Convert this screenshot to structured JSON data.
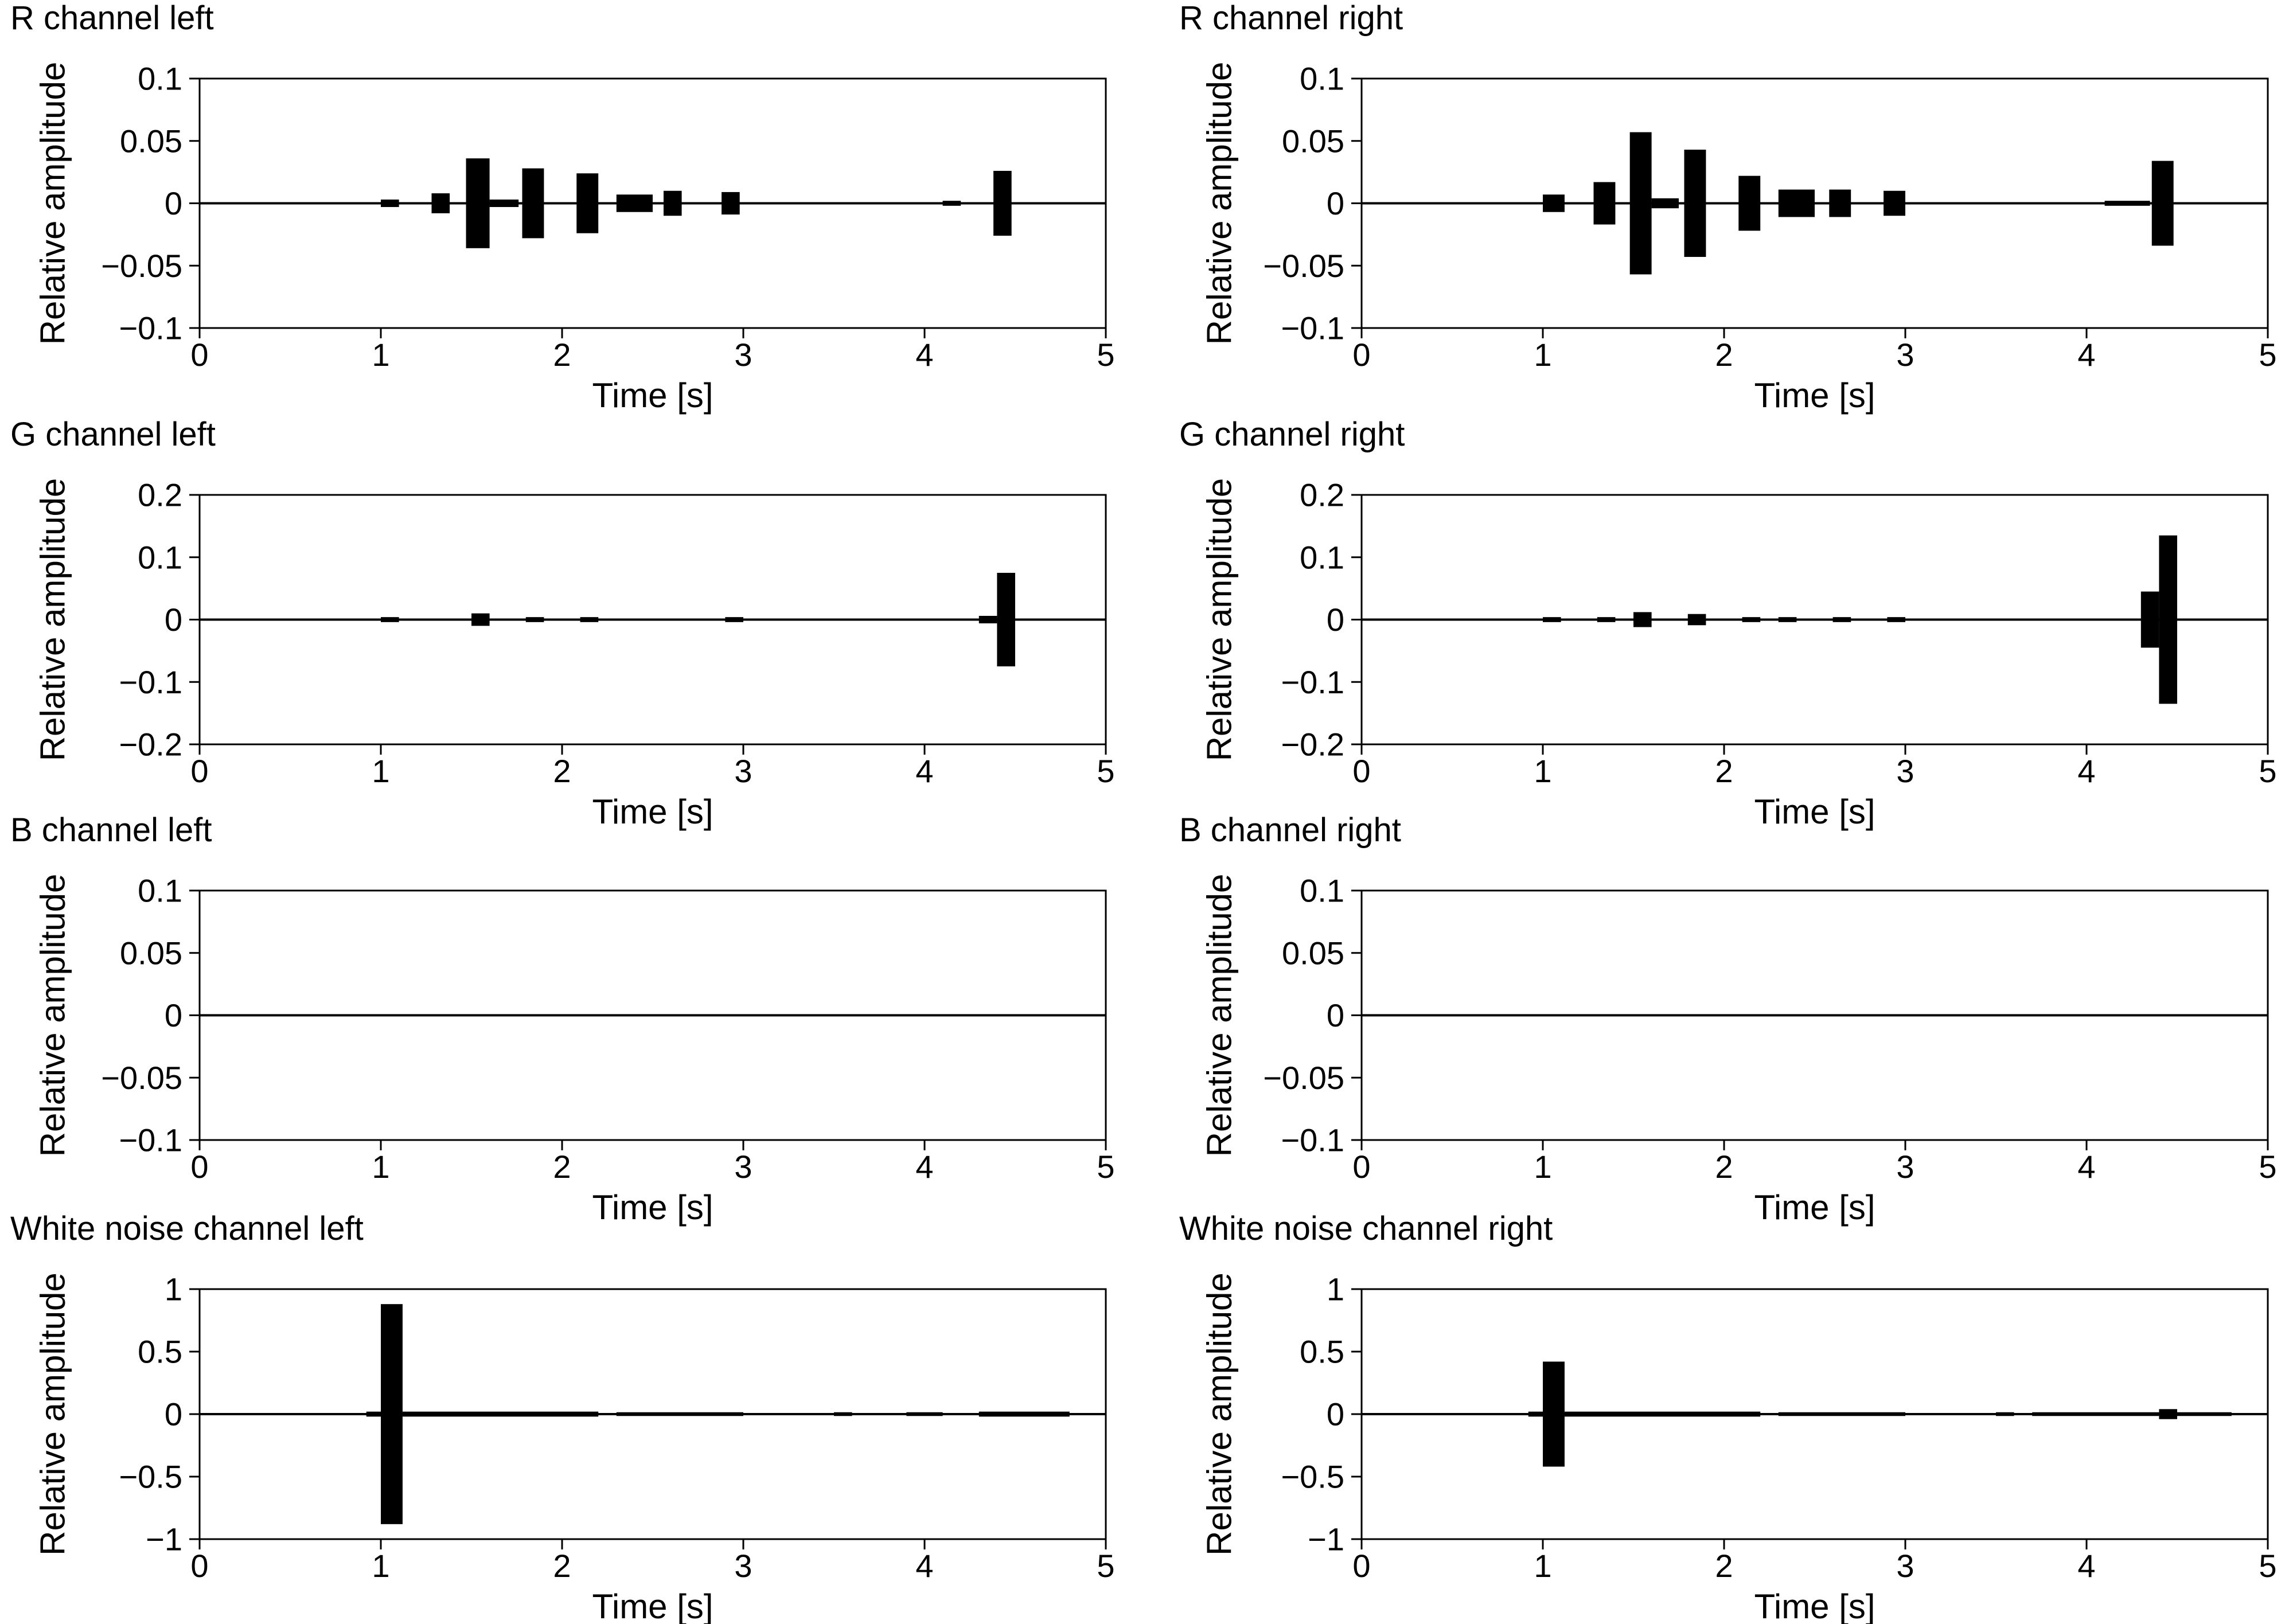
{
  "figure": {
    "x_axis_label": "Time [s]",
    "y_axis_label": "Relative amplitude"
  },
  "chart_data": [
    {
      "id": "r-left",
      "type": "line",
      "title": "R channel left",
      "xlabel": "Time [s]",
      "ylabel": "Relative amplitude",
      "xlim": [
        0,
        5
      ],
      "ylim": [
        -0.1,
        0.1
      ],
      "xticks": [
        0,
        1,
        2,
        3,
        4,
        5
      ],
      "yticks": [
        0.1,
        0.05,
        0,
        -0.05,
        -0.1
      ],
      "ytick_labels": [
        "0.1",
        "0.05",
        "0",
        "−0.05",
        "−0.1"
      ],
      "bursts": [
        {
          "start": 1.0,
          "end": 1.1,
          "amplitude": 0.003
        },
        {
          "start": 1.28,
          "end": 1.38,
          "amplitude": 0.008
        },
        {
          "start": 1.47,
          "end": 1.6,
          "amplitude": 0.036
        },
        {
          "start": 1.6,
          "end": 1.76,
          "amplitude": 0.003
        },
        {
          "start": 1.78,
          "end": 1.9,
          "amplitude": 0.028
        },
        {
          "start": 2.08,
          "end": 2.2,
          "amplitude": 0.024
        },
        {
          "start": 2.3,
          "end": 2.5,
          "amplitude": 0.007
        },
        {
          "start": 2.56,
          "end": 2.66,
          "amplitude": 0.01
        },
        {
          "start": 2.88,
          "end": 2.98,
          "amplitude": 0.009
        },
        {
          "start": 4.1,
          "end": 4.2,
          "amplitude": 0.002
        },
        {
          "start": 4.38,
          "end": 4.48,
          "amplitude": 0.026
        }
      ]
    },
    {
      "id": "r-right",
      "type": "line",
      "title": "R channel right",
      "xlabel": "Time [s]",
      "ylabel": "Relative amplitude",
      "xlim": [
        0,
        5
      ],
      "ylim": [
        -0.1,
        0.1
      ],
      "xticks": [
        0,
        1,
        2,
        3,
        4,
        5
      ],
      "yticks": [
        0.1,
        0.05,
        0,
        -0.05,
        -0.1
      ],
      "ytick_labels": [
        "0.1",
        "0.05",
        "0",
        "−0.05",
        "−0.1"
      ],
      "bursts": [
        {
          "start": 1.0,
          "end": 1.12,
          "amplitude": 0.007
        },
        {
          "start": 1.28,
          "end": 1.4,
          "amplitude": 0.017
        },
        {
          "start": 1.48,
          "end": 1.6,
          "amplitude": 0.057
        },
        {
          "start": 1.6,
          "end": 1.75,
          "amplitude": 0.004
        },
        {
          "start": 1.78,
          "end": 1.9,
          "amplitude": 0.043
        },
        {
          "start": 2.08,
          "end": 2.2,
          "amplitude": 0.022
        },
        {
          "start": 2.3,
          "end": 2.5,
          "amplitude": 0.011
        },
        {
          "start": 2.58,
          "end": 2.7,
          "amplitude": 0.011
        },
        {
          "start": 2.88,
          "end": 3.0,
          "amplitude": 0.01
        },
        {
          "start": 4.1,
          "end": 4.35,
          "amplitude": 0.002
        },
        {
          "start": 4.36,
          "end": 4.48,
          "amplitude": 0.034
        }
      ]
    },
    {
      "id": "g-left",
      "type": "line",
      "title": "G channel left",
      "xlabel": "Time [s]",
      "ylabel": "Relative amplitude",
      "xlim": [
        0,
        5
      ],
      "ylim": [
        -0.2,
        0.2
      ],
      "xticks": [
        0,
        1,
        2,
        3,
        4,
        5
      ],
      "yticks": [
        0.2,
        0.1,
        0,
        -0.1,
        -0.2
      ],
      "ytick_labels": [
        "0.2",
        "0.1",
        "0",
        "−0.1",
        "−0.2"
      ],
      "bursts": [
        {
          "start": 1.0,
          "end": 1.1,
          "amplitude": 0.004
        },
        {
          "start": 1.5,
          "end": 1.6,
          "amplitude": 0.01
        },
        {
          "start": 1.8,
          "end": 1.9,
          "amplitude": 0.004
        },
        {
          "start": 2.1,
          "end": 2.2,
          "amplitude": 0.004
        },
        {
          "start": 2.9,
          "end": 3.0,
          "amplitude": 0.004
        },
        {
          "start": 4.3,
          "end": 4.4,
          "amplitude": 0.006
        },
        {
          "start": 4.4,
          "end": 4.5,
          "amplitude": 0.075
        }
      ]
    },
    {
      "id": "g-right",
      "type": "line",
      "title": "G channel right",
      "xlabel": "Time [s]",
      "ylabel": "Relative amplitude",
      "xlim": [
        0,
        5
      ],
      "ylim": [
        -0.2,
        0.2
      ],
      "xticks": [
        0,
        1,
        2,
        3,
        4,
        5
      ],
      "yticks": [
        0.2,
        0.1,
        0,
        -0.1,
        -0.2
      ],
      "ytick_labels": [
        "0.2",
        "0.1",
        "0",
        "−0.1",
        "−0.2"
      ],
      "bursts": [
        {
          "start": 1.0,
          "end": 1.1,
          "amplitude": 0.004
        },
        {
          "start": 1.3,
          "end": 1.4,
          "amplitude": 0.004
        },
        {
          "start": 1.5,
          "end": 1.6,
          "amplitude": 0.012
        },
        {
          "start": 1.8,
          "end": 1.9,
          "amplitude": 0.009
        },
        {
          "start": 2.1,
          "end": 2.2,
          "amplitude": 0.004
        },
        {
          "start": 2.3,
          "end": 2.4,
          "amplitude": 0.004
        },
        {
          "start": 2.6,
          "end": 2.7,
          "amplitude": 0.004
        },
        {
          "start": 2.9,
          "end": 3.0,
          "amplitude": 0.004
        },
        {
          "start": 4.3,
          "end": 4.4,
          "amplitude": 0.045
        },
        {
          "start": 4.4,
          "end": 4.5,
          "amplitude": 0.135
        }
      ]
    },
    {
      "id": "b-left",
      "type": "line",
      "title": "B channel left",
      "xlabel": "Time [s]",
      "ylabel": "Relative amplitude",
      "xlim": [
        0,
        5
      ],
      "ylim": [
        -0.1,
        0.1
      ],
      "xticks": [
        0,
        1,
        2,
        3,
        4,
        5
      ],
      "yticks": [
        0.1,
        0.05,
        0,
        -0.05,
        -0.1
      ],
      "ytick_labels": [
        "0.1",
        "0.05",
        "0",
        "−0.05",
        "−0.1"
      ],
      "bursts": []
    },
    {
      "id": "b-right",
      "type": "line",
      "title": "B channel right",
      "xlabel": "Time [s]",
      "ylabel": "Relative amplitude",
      "xlim": [
        0,
        5
      ],
      "ylim": [
        -0.1,
        0.1
      ],
      "xticks": [
        0,
        1,
        2,
        3,
        4,
        5
      ],
      "yticks": [
        0.1,
        0.05,
        0,
        -0.05,
        -0.1
      ],
      "ytick_labels": [
        "0.1",
        "0.05",
        "0",
        "−0.05",
        "−0.1"
      ],
      "bursts": []
    },
    {
      "id": "wn-left",
      "type": "line",
      "title": "White noise channel left",
      "xlabel": "Time [s]",
      "ylabel": "Relative amplitude",
      "xlim": [
        0,
        5
      ],
      "ylim": [
        -1,
        1
      ],
      "xticks": [
        0,
        1,
        2,
        3,
        4,
        5
      ],
      "yticks": [
        1,
        0.5,
        0,
        -0.5,
        -1
      ],
      "ytick_labels": [
        "1",
        "0.5",
        "0",
        "−0.5",
        "−1"
      ],
      "bursts": [
        {
          "start": 0.92,
          "end": 1.0,
          "amplitude": 0.02
        },
        {
          "start": 1.0,
          "end": 1.12,
          "amplitude": 0.88
        },
        {
          "start": 1.12,
          "end": 2.2,
          "amplitude": 0.02
        },
        {
          "start": 2.3,
          "end": 3.0,
          "amplitude": 0.015
        },
        {
          "start": 3.5,
          "end": 3.6,
          "amplitude": 0.015
        },
        {
          "start": 3.9,
          "end": 4.1,
          "amplitude": 0.015
        },
        {
          "start": 4.3,
          "end": 4.8,
          "amplitude": 0.02
        }
      ]
    },
    {
      "id": "wn-right",
      "type": "line",
      "title": "White noise channel right",
      "xlabel": "Time [s]",
      "ylabel": "Relative amplitude",
      "xlim": [
        0,
        5
      ],
      "ylim": [
        -1,
        1
      ],
      "xticks": [
        0,
        1,
        2,
        3,
        4,
        5
      ],
      "yticks": [
        1,
        0.5,
        0,
        -0.5,
        -1
      ],
      "ytick_labels": [
        "1",
        "0.5",
        "0",
        "−0.5",
        "−1"
      ],
      "bursts": [
        {
          "start": 0.92,
          "end": 1.0,
          "amplitude": 0.02
        },
        {
          "start": 1.0,
          "end": 1.12,
          "amplitude": 0.42
        },
        {
          "start": 1.12,
          "end": 2.2,
          "amplitude": 0.02
        },
        {
          "start": 2.3,
          "end": 3.0,
          "amplitude": 0.015
        },
        {
          "start": 3.5,
          "end": 3.6,
          "amplitude": 0.015
        },
        {
          "start": 3.7,
          "end": 4.4,
          "amplitude": 0.015
        },
        {
          "start": 4.4,
          "end": 4.5,
          "amplitude": 0.04
        },
        {
          "start": 4.5,
          "end": 4.8,
          "amplitude": 0.015
        }
      ]
    }
  ]
}
